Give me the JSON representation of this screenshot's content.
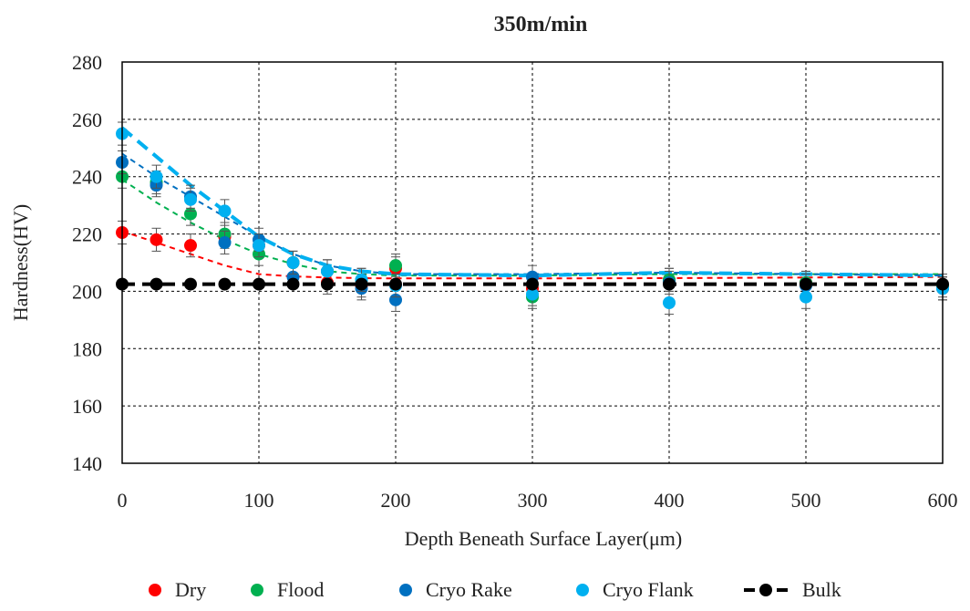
{
  "chart_data": {
    "type": "scatter",
    "title": "350m/min",
    "xlabel": "Depth Beneath Surface Layer(μm)",
    "ylabel": "Hardness(HV)",
    "xlim": [
      0,
      600
    ],
    "ylim": [
      140,
      280
    ],
    "xticks": [
      0,
      100,
      200,
      300,
      400,
      500,
      600
    ],
    "yticks": [
      140,
      160,
      180,
      200,
      220,
      240,
      260,
      280
    ],
    "grid": true,
    "legend_position": "bottom",
    "series": [
      {
        "name": "Dry",
        "color": "#ff0000",
        "x": [
          0,
          25,
          50,
          75,
          100,
          125,
          150,
          175,
          200,
          300,
          400,
          500,
          600
        ],
        "y": [
          220.5,
          218,
          216,
          219,
          216,
          210,
          203,
          202,
          208,
          201,
          204,
          203,
          201
        ],
        "err": [
          4,
          4,
          4,
          4,
          4,
          4,
          4,
          4,
          4,
          4,
          4,
          4,
          4
        ],
        "trend": {
          "x": [
            0,
            25,
            50,
            75,
            100,
            125,
            150,
            175,
            200,
            300,
            400,
            500,
            600
          ],
          "y": [
            221,
            217,
            213,
            209,
            206,
            205.2,
            204.8,
            204.6,
            204.5,
            204.5,
            204.6,
            204.8,
            205
          ]
        }
      },
      {
        "name": "Flood",
        "color": "#00b050",
        "x": [
          0,
          25,
          50,
          75,
          100,
          125,
          150,
          175,
          200,
          300,
          400,
          500,
          600
        ],
        "y": [
          240,
          238,
          227,
          220,
          213,
          210,
          207,
          204,
          209,
          198,
          204,
          203,
          202
        ],
        "err": [
          4,
          4,
          4,
          4,
          4,
          4,
          4,
          4,
          4,
          4,
          4,
          4,
          4
        ],
        "trend": {
          "x": [
            0,
            25,
            50,
            75,
            100,
            125,
            150,
            175,
            200,
            300,
            400,
            500,
            600
          ],
          "y": [
            239,
            231,
            224,
            218,
            213,
            209.5,
            207,
            206,
            205.5,
            205.5,
            206,
            206,
            206
          ]
        }
      },
      {
        "name": "Cryo Rake",
        "color": "#0070c0",
        "x": [
          0,
          25,
          50,
          75,
          100,
          125,
          150,
          175,
          200,
          300,
          400,
          500,
          600
        ],
        "y": [
          245,
          237,
          233,
          217,
          218,
          205,
          207,
          201,
          197,
          205,
          203,
          202,
          201
        ],
        "err": [
          4,
          4,
          4,
          4,
          4,
          4,
          4,
          4,
          4,
          4,
          4,
          4,
          4
        ],
        "trend": {
          "x": [
            0,
            25,
            50,
            75,
            100,
            125,
            150,
            175,
            200,
            300,
            400,
            500,
            600
          ],
          "y": [
            248,
            240,
            233,
            226,
            219,
            213,
            209,
            207,
            206,
            206,
            206.5,
            206,
            205.5
          ]
        }
      },
      {
        "name": "Cryo Flank",
        "color": "#00b0f0",
        "x": [
          0,
          25,
          50,
          75,
          100,
          125,
          150,
          175,
          200,
          300,
          400,
          500,
          600
        ],
        "y": [
          255,
          240,
          232,
          228,
          216,
          210,
          207,
          204,
          202,
          199,
          196,
          198,
          201
        ],
        "err": [
          4,
          4,
          4,
          4,
          4,
          4,
          4,
          4,
          4,
          4,
          4,
          4,
          4
        ],
        "trend": {
          "x": [
            0,
            25,
            50,
            75,
            100,
            125,
            150,
            175,
            200,
            300,
            400,
            500,
            600
          ],
          "y": [
            257,
            247,
            237,
            228,
            219,
            213,
            209,
            207,
            206,
            205.5,
            206.5,
            206,
            205.5
          ]
        }
      },
      {
        "name": "Bulk",
        "color": "#000000",
        "x": [
          0,
          25,
          50,
          75,
          100,
          125,
          150,
          175,
          200,
          300,
          400,
          500,
          600
        ],
        "y": [
          202.5,
          202.5,
          202.5,
          202.5,
          202.5,
          202.5,
          202.5,
          202.5,
          202.5,
          202.5,
          202.5,
          202.5,
          202.5
        ]
      }
    ]
  }
}
